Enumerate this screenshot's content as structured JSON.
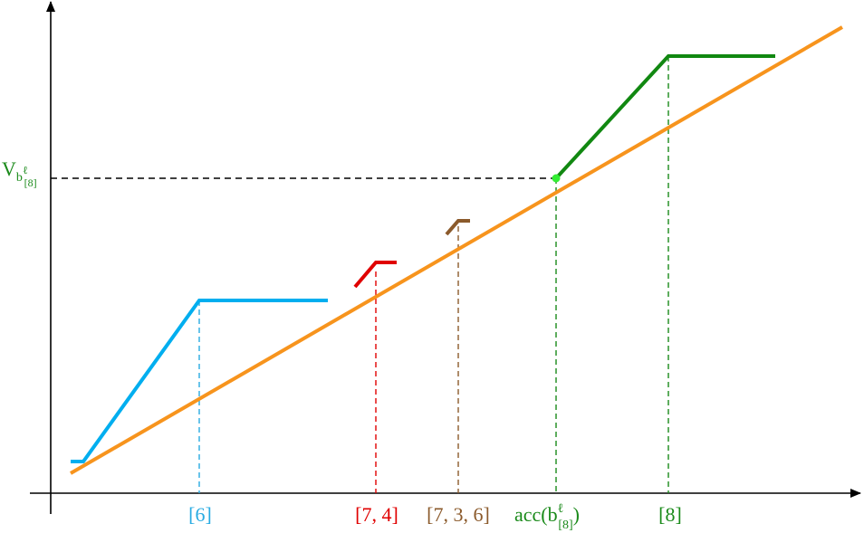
{
  "labels": {
    "b6": "[6]",
    "b74": "[7, 4]",
    "b736": "[7, 3, 6]",
    "acc": {
      "base": "acc(b",
      "sup": "ℓ",
      "sub": "[8]",
      "close": ")"
    },
    "b8": "[8]",
    "v": {
      "base": "V",
      "sub": "b",
      "subsup": "ℓ",
      "subsub": "[8]"
    }
  }
}
